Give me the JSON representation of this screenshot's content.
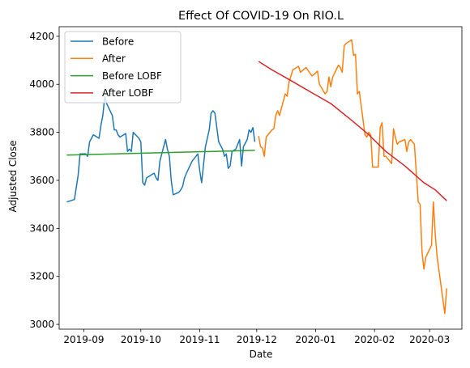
{
  "chart_data": {
    "type": "line",
    "title": "Effect Of COVID-19 On RIO.L",
    "xlabel": "Date",
    "ylabel": "Adjusted Close",
    "x_range": [
      "2019-08-19",
      "2020-03-18"
    ],
    "ylim": [
      2980,
      4240
    ],
    "x_ticks": [
      {
        "date": "2019-09-01",
        "label": "2019-09"
      },
      {
        "date": "2019-10-01",
        "label": "2019-10"
      },
      {
        "date": "2019-11-01",
        "label": "2019-11"
      },
      {
        "date": "2019-12-01",
        "label": "2019-12"
      },
      {
        "date": "2020-01-01",
        "label": "2020-01"
      },
      {
        "date": "2020-02-01",
        "label": "2020-02"
      },
      {
        "date": "2020-03-01",
        "label": "2020-03"
      }
    ],
    "y_ticks": [
      3000,
      3200,
      3400,
      3600,
      3800,
      4000,
      4200
    ],
    "grid": false,
    "legend": {
      "placement": "top-left"
    },
    "series": [
      {
        "name": "Before",
        "color": "#1f77b4",
        "points": [
          [
            "2019-08-23",
            3510
          ],
          [
            "2019-08-27",
            3520
          ],
          [
            "2019-08-29",
            3620
          ],
          [
            "2019-08-30",
            3710
          ],
          [
            "2019-09-02",
            3710
          ],
          [
            "2019-09-03",
            3700
          ],
          [
            "2019-09-04",
            3760
          ],
          [
            "2019-09-06",
            3790
          ],
          [
            "2019-09-09",
            3775
          ],
          [
            "2019-09-10",
            3830
          ],
          [
            "2019-09-11",
            3870
          ],
          [
            "2019-09-12",
            3950
          ],
          [
            "2019-09-13",
            3920
          ],
          [
            "2019-09-16",
            3870
          ],
          [
            "2019-09-17",
            3810
          ],
          [
            "2019-09-18",
            3810
          ],
          [
            "2019-09-19",
            3790
          ],
          [
            "2019-09-20",
            3780
          ],
          [
            "2019-09-23",
            3795
          ],
          [
            "2019-09-24",
            3720
          ],
          [
            "2019-09-25",
            3730
          ],
          [
            "2019-09-26",
            3720
          ],
          [
            "2019-09-27",
            3800
          ],
          [
            "2019-09-30",
            3775
          ],
          [
            "2019-10-01",
            3760
          ],
          [
            "2019-10-02",
            3590
          ],
          [
            "2019-10-03",
            3580
          ],
          [
            "2019-10-04",
            3610
          ],
          [
            "2019-10-07",
            3625
          ],
          [
            "2019-10-08",
            3630
          ],
          [
            "2019-10-09",
            3610
          ],
          [
            "2019-10-10",
            3600
          ],
          [
            "2019-10-11",
            3680
          ],
          [
            "2019-10-14",
            3770
          ],
          [
            "2019-10-15",
            3730
          ],
          [
            "2019-10-16",
            3700
          ],
          [
            "2019-10-17",
            3600
          ],
          [
            "2019-10-18",
            3540
          ],
          [
            "2019-10-21",
            3550
          ],
          [
            "2019-10-22",
            3560
          ],
          [
            "2019-10-23",
            3575
          ],
          [
            "2019-10-24",
            3610
          ],
          [
            "2019-10-25",
            3630
          ],
          [
            "2019-10-28",
            3680
          ],
          [
            "2019-10-30",
            3700
          ],
          [
            "2019-10-31",
            3710
          ],
          [
            "2019-11-01",
            3640
          ],
          [
            "2019-11-02",
            3590
          ],
          [
            "2019-11-04",
            3740
          ],
          [
            "2019-11-06",
            3810
          ],
          [
            "2019-11-07",
            3880
          ],
          [
            "2019-11-08",
            3890
          ],
          [
            "2019-11-09",
            3880
          ],
          [
            "2019-11-11",
            3760
          ],
          [
            "2019-11-13",
            3730
          ],
          [
            "2019-11-14",
            3700
          ],
          [
            "2019-11-15",
            3710
          ],
          [
            "2019-11-16",
            3650
          ],
          [
            "2019-11-17",
            3660
          ],
          [
            "2019-11-18",
            3720
          ],
          [
            "2019-11-20",
            3730
          ],
          [
            "2019-11-22",
            3770
          ],
          [
            "2019-11-23",
            3660
          ],
          [
            "2019-11-24",
            3740
          ],
          [
            "2019-11-26",
            3770
          ],
          [
            "2019-11-27",
            3810
          ],
          [
            "2019-11-28",
            3800
          ],
          [
            "2019-11-29",
            3820
          ],
          [
            "2019-11-30",
            3760
          ]
        ]
      },
      {
        "name": "After",
        "color": "#ff7f0e",
        "points": [
          [
            "2019-12-02",
            3785
          ],
          [
            "2019-12-03",
            3740
          ],
          [
            "2019-12-04",
            3735
          ],
          [
            "2019-12-05",
            3700
          ],
          [
            "2019-12-06",
            3780
          ],
          [
            "2019-12-09",
            3810
          ],
          [
            "2019-12-10",
            3815
          ],
          [
            "2019-12-11",
            3870
          ],
          [
            "2019-12-12",
            3890
          ],
          [
            "2019-12-13",
            3870
          ],
          [
            "2019-12-16",
            3960
          ],
          [
            "2019-12-17",
            3950
          ],
          [
            "2019-12-18",
            4010
          ],
          [
            "2019-12-20",
            4060
          ],
          [
            "2019-12-23",
            4075
          ],
          [
            "2019-12-24",
            4050
          ],
          [
            "2019-12-27",
            4070
          ],
          [
            "2019-12-30",
            4035
          ],
          [
            "2019-12-31",
            4040
          ],
          [
            "2020-01-02",
            4055
          ],
          [
            "2020-01-03",
            4000
          ],
          [
            "2020-01-06",
            3960
          ],
          [
            "2020-01-07",
            3970
          ],
          [
            "2020-01-08",
            4030
          ],
          [
            "2020-01-09",
            3990
          ],
          [
            "2020-01-10",
            4030
          ],
          [
            "2020-01-13",
            4080
          ],
          [
            "2020-01-14",
            4070
          ],
          [
            "2020-01-15",
            4050
          ],
          [
            "2020-01-16",
            4160
          ],
          [
            "2020-01-17",
            4170
          ],
          [
            "2020-01-20",
            4185
          ],
          [
            "2020-01-21",
            4120
          ],
          [
            "2020-01-22",
            4125
          ],
          [
            "2020-01-23",
            3960
          ],
          [
            "2020-01-24",
            3970
          ],
          [
            "2020-01-27",
            3790
          ],
          [
            "2020-01-28",
            3780
          ],
          [
            "2020-01-29",
            3800
          ],
          [
            "2020-01-30",
            3790
          ],
          [
            "2020-01-31",
            3655
          ],
          [
            "2020-02-03",
            3655
          ],
          [
            "2020-02-04",
            3820
          ],
          [
            "2020-02-05",
            3840
          ],
          [
            "2020-02-06",
            3700
          ],
          [
            "2020-02-07",
            3700
          ],
          [
            "2020-02-10",
            3670
          ],
          [
            "2020-02-11",
            3815
          ],
          [
            "2020-02-12",
            3780
          ],
          [
            "2020-02-13",
            3750
          ],
          [
            "2020-02-14",
            3760
          ],
          [
            "2020-02-17",
            3770
          ],
          [
            "2020-02-18",
            3720
          ],
          [
            "2020-02-19",
            3760
          ],
          [
            "2020-02-20",
            3770
          ],
          [
            "2020-02-21",
            3760
          ],
          [
            "2020-02-22",
            3750
          ],
          [
            "2020-02-24",
            3510
          ],
          [
            "2020-02-25",
            3500
          ],
          [
            "2020-02-26",
            3300
          ],
          [
            "2020-02-27",
            3230
          ],
          [
            "2020-02-28",
            3280
          ],
          [
            "2020-03-02",
            3330
          ],
          [
            "2020-03-03",
            3510
          ],
          [
            "2020-03-04",
            3370
          ],
          [
            "2020-03-05",
            3280
          ],
          [
            "2020-03-09",
            3045
          ],
          [
            "2020-03-10",
            3150
          ]
        ]
      },
      {
        "name": "Before LOBF",
        "color": "#2ca02c",
        "points": [
          [
            "2019-08-23",
            3705
          ],
          [
            "2019-11-30",
            3725
          ]
        ]
      },
      {
        "name": "After LOBF",
        "color": "#d62728",
        "points": [
          [
            "2019-12-02",
            4095
          ],
          [
            "2019-12-09",
            4060
          ],
          [
            "2019-12-18",
            4020
          ],
          [
            "2019-12-30",
            3965
          ],
          [
            "2020-01-09",
            3920
          ],
          [
            "2020-01-20",
            3850
          ],
          [
            "2020-01-29",
            3790
          ],
          [
            "2020-02-07",
            3720
          ],
          [
            "2020-02-17",
            3660
          ],
          [
            "2020-02-27",
            3590
          ],
          [
            "2020-03-04",
            3560
          ],
          [
            "2020-03-10",
            3515
          ]
        ]
      }
    ]
  }
}
